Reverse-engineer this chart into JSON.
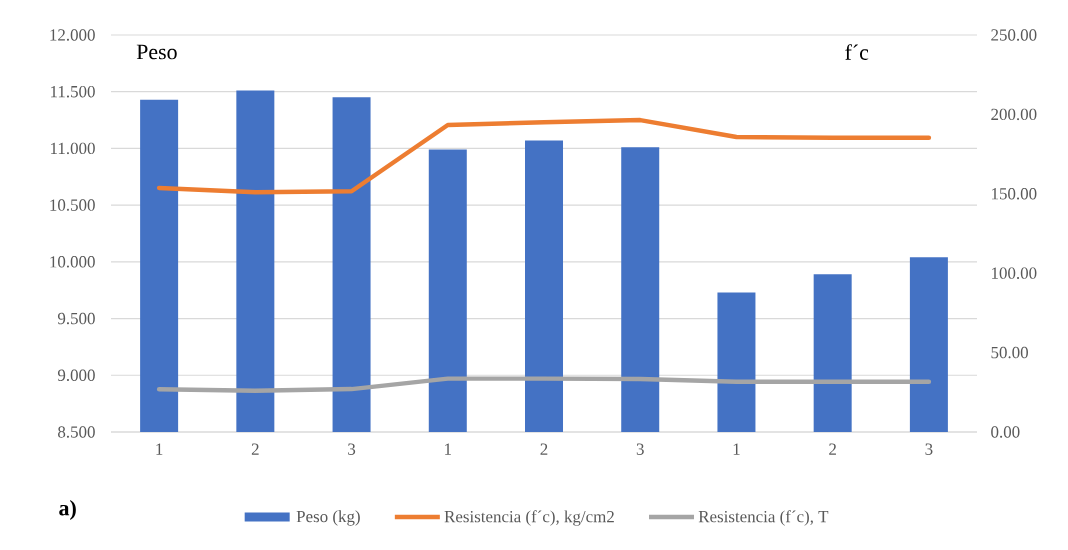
{
  "chart_data": {
    "type": "bar",
    "ylabel": "Peso",
    "y2label": "f´c",
    "annotations": [
      "a)"
    ],
    "categories": [
      "1",
      "2",
      "3",
      "1",
      "2",
      "3",
      "1",
      "2",
      "3"
    ],
    "series": [
      {
        "name": "Peso (kg)",
        "color": "#4472c4",
        "values": [
          11.43,
          11.51,
          11.45,
          10.99,
          11.07,
          11.01,
          9.73,
          9.89,
          10.04
        ]
      },
      {
        "name": "Resistencia (f´c), kg/cm2",
        "type": "line",
        "axis": "y2",
        "color": "#ed7d31",
        "values": [
          153.7,
          151,
          151.6,
          193.3,
          195,
          196.4,
          185.8,
          185.3,
          185.3
        ]
      },
      {
        "name": "Resistencia (f´c), T",
        "type": "line",
        "axis": "y2",
        "color": "#a5a5a5",
        "values": [
          26.9,
          26,
          27,
          33.6,
          33.6,
          33.4,
          31.7,
          31.7,
          31.7
        ]
      }
    ],
    "ylim": [
      8.5,
      12
    ],
    "yticks": [
      {
        "value": 8.5,
        "label": "8.500"
      },
      {
        "value": 9,
        "label": "9.000"
      },
      {
        "value": 9.5,
        "label": "9.500"
      },
      {
        "value": 10,
        "label": "10.000"
      },
      {
        "value": 10.5,
        "label": "10.500"
      },
      {
        "value": 11,
        "label": "11.000"
      },
      {
        "value": 11.5,
        "label": "11.500"
      },
      {
        "value": 12,
        "label": "12.000"
      }
    ],
    "y2lim": [
      0,
      250
    ],
    "y2ticks": [
      {
        "value": 0,
        "label": "0.00"
      },
      {
        "value": 50,
        "label": "50.00"
      },
      {
        "value": 100,
        "label": "100.00"
      },
      {
        "value": 150,
        "label": "150.00"
      },
      {
        "value": 200,
        "label": "200.00"
      },
      {
        "value": 250,
        "label": "250.00"
      }
    ],
    "grid": "y",
    "legend": "bottom"
  }
}
